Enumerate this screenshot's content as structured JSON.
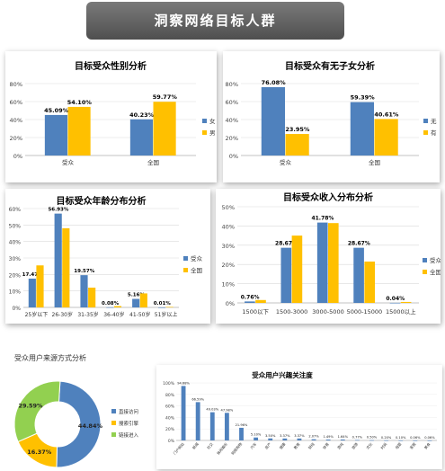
{
  "header": {
    "title": "洞察网络目标人群"
  },
  "colors": {
    "blue": "#4f81bd",
    "orange": "#ffc000",
    "green": "#92d050",
    "grid": "#d9d9d9",
    "axis": "#888888"
  },
  "chart_data": [
    {
      "id": "gender",
      "type": "bar",
      "title": "目标受众性别分析",
      "categories": [
        "受众",
        "全国"
      ],
      "series": [
        {
          "name": "女",
          "values": [
            45.09,
            40.23
          ],
          "labels": [
            "45.09%",
            "40.23%"
          ]
        },
        {
          "name": "男",
          "values": [
            54.1,
            59.77
          ],
          "labels": [
            "54.10%",
            "59.77%"
          ]
        }
      ],
      "ylim": [
        0,
        80
      ],
      "yticks": [
        "0%",
        "20%",
        "40%",
        "60%",
        "80%"
      ],
      "legend": "right"
    },
    {
      "id": "children",
      "type": "bar",
      "title": "目标受众有无子女分析",
      "categories": [
        "受众",
        "全国"
      ],
      "series": [
        {
          "name": "无",
          "values": [
            76.08,
            59.39
          ],
          "labels": [
            "76.08%",
            "59.39%"
          ]
        },
        {
          "name": "有",
          "values": [
            23.95,
            40.61
          ],
          "labels": [
            "23.95%",
            "40.61%"
          ]
        }
      ],
      "ylim": [
        0,
        80
      ],
      "yticks": [
        "0%",
        "20%",
        "40%",
        "60%",
        "80%"
      ],
      "legend": "right"
    },
    {
      "id": "age",
      "type": "bar",
      "title": "目标受众年龄分布分析",
      "categories": [
        "25岁以下",
        "26-30岁",
        "31-35岁",
        "36-40岁",
        "41-50岁",
        "51岁以上"
      ],
      "series": [
        {
          "name": "受众",
          "values": [
            17.47,
            56.93,
            19.57,
            0.08,
            5.16,
            0.01
          ],
          "labels": [
            "17.47%",
            "56.93%",
            "19.57%",
            "0.08%",
            "5.16%",
            "0.01%"
          ]
        },
        {
          "name": "全国",
          "values": [
            25.5,
            48.0,
            12.0,
            0.8,
            8.5,
            0.3
          ],
          "labels": []
        }
      ],
      "ylim": [
        0,
        60
      ],
      "yticks": [
        "0%",
        "10%",
        "20%",
        "30%",
        "40%",
        "50%",
        "60%"
      ],
      "legend": "right"
    },
    {
      "id": "income",
      "type": "bar",
      "title": "目标受众收入分布分析",
      "categories": [
        "1500以下",
        "1500-3000",
        "3000-5000",
        "5000-15000",
        "15000以上"
      ],
      "series": [
        {
          "name": "受众",
          "values": [
            0.76,
            28.67,
            41.78,
            28.67,
            0.04
          ],
          "labels": [
            "0.76%",
            "28.67%",
            "41.78%",
            "28.67%",
            "0.04%"
          ]
        },
        {
          "name": "全国",
          "values": [
            1.5,
            35.0,
            41.5,
            21.5,
            0.5
          ],
          "labels": []
        }
      ],
      "ylim": [
        0,
        50
      ],
      "yticks": [
        "0%",
        "10%",
        "20%",
        "30%",
        "40%",
        "50%"
      ],
      "legend": "right"
    },
    {
      "id": "source",
      "type": "pie",
      "title": "受众用户来源方式分析",
      "slices": [
        {
          "name": "直接访问",
          "value": 44.84,
          "label": "44.84%"
        },
        {
          "name": "搜索引擎",
          "value": 16.37,
          "label": "16.37%"
        },
        {
          "name": "链接进入",
          "value": 29.59,
          "label": "29.59%"
        }
      ],
      "donut": true,
      "legend": "right"
    },
    {
      "id": "interest",
      "type": "bar",
      "title": "受众用户兴趣关注度",
      "categories": [
        "门户网站",
        "新闻",
        "社交",
        "休闲娱乐",
        "网络购物",
        "汽车",
        "房产",
        "健康",
        "教育",
        "财经",
        "体育",
        "游戏",
        "旅游",
        "文化",
        "时尚",
        "母婴",
        "家居",
        "美食"
      ],
      "values": [
        94.68,
        66.59,
        49.03,
        47.98,
        21.96,
        5.1,
        3.5,
        3.37,
        3.37,
        2.07,
        1.49,
        1.64,
        0.77,
        0.5,
        0.2,
        0.1,
        0.06,
        0.06
      ],
      "labels": [
        "94.68%",
        "66.59%",
        "49.03%",
        "47.98%",
        "21.96%",
        "5.10%",
        "3.50%",
        "3.37%",
        "3.37%",
        "2.07%",
        "1.49%",
        "1.64%",
        "0.77%",
        "0.50%",
        "0.20%",
        "0.10%",
        "0.06%",
        "0.06%"
      ],
      "ylim": [
        0,
        100
      ],
      "yticks": [
        "0%",
        "20%",
        "40%",
        "60%",
        "80%",
        "100%"
      ]
    }
  ]
}
